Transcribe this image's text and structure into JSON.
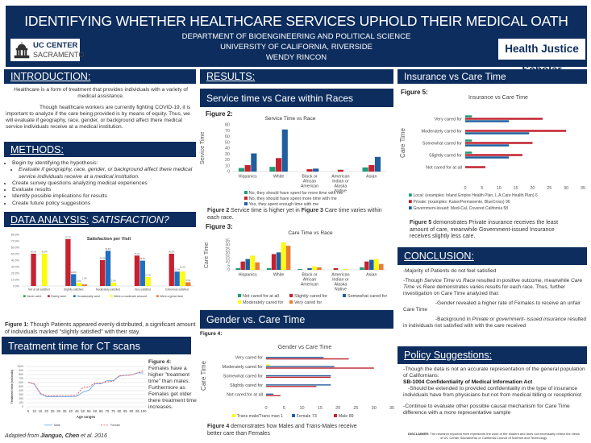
{
  "header": {
    "title": "IDENTIFYING WHETHER HEALTHCARE SERVICES UPHOLD THEIR MEDICAL OATH",
    "department": "DEPARTMENT OF BIOENGINEERING AND POLITICAL SCIENCE",
    "university": "UNIVERSITY OF CALIFORNIA, RIVERSIDE",
    "author": "WENDY RINCON",
    "logo_line1": "UC CENTER",
    "logo_line2": "SACRAMENTO",
    "badge": "Health Justice Scholar"
  },
  "intro": {
    "heading": "INTRODUCTION:",
    "p1": "Healthcare is a form of treatment that provides individuals with a variety of medical assistance.",
    "p2": "Though healthcare workers are currently fighting COVID-19, it is important to analyze if the care being provided is by means of equity. Thus, we will evaluate if geography, race, gender, or background affect there medical service individuals receive at a medical institution."
  },
  "methods": {
    "heading": "METHODS:",
    "items": [
      "Begin by identifying the hypothesis:",
      "Evaluate if geography, race, gender, or background affect there medical service individuals receive at a medical institution.",
      "Create survey questions analyzing medical experiences",
      "Evaluate results",
      "Identify possible implications for results",
      "Create future policy suggestions"
    ]
  },
  "data_analysis": {
    "heading": "DATA ANALYSIS:",
    "heading_italic": "SATISFACTION?",
    "caption_bold": "Figure 1:",
    "caption": " Though Patients appeared evenly distributed, a significant amount of individuals marked \"slightly satisfied\" with their stay."
  },
  "treatment": {
    "heading": "Treatment time for CT scans",
    "fig_label": "Figure 4:",
    "fig_text": "Females have a higher \"treatment time\" than males. Furthermore as Females get older there treatment time increases.",
    "source_prefix": "Adapted from ",
    "source_author": "Jianguo, Chen",
    "source_suffix": " et al. 2016"
  },
  "results": {
    "heading": "RESULTS:",
    "service_heading": "Service time vs Care within Races",
    "fig2_label": "Figure 2:",
    "caption_b1": "Figure 2",
    "caption_t1": " Service time is higher yet in ",
    "caption_b2": "Figure 3",
    "caption_t2": " Care time varies within each race.",
    "fig3_label": "Figure 3:",
    "gender_heading": "Gender vs. Care Time",
    "fig4_label": "Figure 4:",
    "fig4_caption_b": "Figure 4",
    "fig4_caption": " demonstrates how Males and Trans-Males receive better care than Females"
  },
  "insurance": {
    "heading": "Insurance vs Care Time",
    "fig5_label": "Figure 5:",
    "caption_b": "Figure 5",
    "caption": " demonstrates Private insurance receives the least amount of care, meanwhile Government-issued Insurance receives slightly less care."
  },
  "conclusion": {
    "heading": "CONCLUSION:",
    "p1": "-Majority of Patients do not feel satisfied",
    "p2a": "-Though ",
    "p2b": "Service Time vs Race",
    "p2c": " resulted in positive outcome, meanwhile ",
    "p2d": "Care Time vs Race",
    "p2e": " demonstrates varies results for each race. Thus, further investigation on Care Time analyzed that:",
    "p3": "-Gender revealed a higher rate of Females to receive an unfair Care Time",
    "p4a": "-Background in ",
    "p4b": "Private or government- issued insurance",
    "p4c": " resulted in individuals not satisfied with with the care received"
  },
  "policy": {
    "heading": "Policy Suggestions:",
    "p1": "-Though the data is not an accurate representation of the general population of Californians:",
    "act": "SB-1004 Confidentiality of Medical Information Act",
    "p2": "-Should be extended to provided confidentiality in the type of insurance individuals have from physicians but not from medical billing or receptionist",
    "p3": "-Continue to evaluate other possible causal mechanism for Care Time difference with a more representative sample",
    "disclaimer_b": "DISCLAIMER:",
    "disclaimer": " The research reported here represents the work of the student and does not necessarily reflect the views of UC Center Sacramento or California Council of Science and Technology."
  },
  "colors": {
    "navy": "#0d2d5e",
    "green": "#1e9e78",
    "red": "#c8202f",
    "blue": "#1f5fa0",
    "yellow": "#ffff00",
    "orange": "#ed7d31"
  },
  "chart_data": [
    {
      "type": "bar",
      "title": "Satisfaction per Visit",
      "categories": [
        "Not at all satisfied",
        "Slightly satisfied",
        "Moderately satisfied",
        "Very satisfied",
        "Extremely satisfied"
      ],
      "ylim": [
        0,
        80
      ],
      "yticks": [
        "0.0%",
        "10.0%",
        "20.0%",
        "30.0%",
        "40.0%",
        "50.0%",
        "60.0%",
        "70.0%",
        "80.0%"
      ],
      "grid": false,
      "legend": "bottom",
      "series": [
        {
          "name": "Never went",
          "color": "#3aa040",
          "values": [
            0,
            0,
            0,
            0,
            0
          ]
        },
        {
          "name": "Rarely went",
          "color": "#c8202f",
          "values": [
            50,
            72.7,
            40,
            47.1,
            50
          ]
        },
        {
          "name": "Occasionally went",
          "color": "#1f6fc0",
          "values": [
            0,
            18.2,
            54.5,
            39.2,
            22.2
          ]
        },
        {
          "name": "Went a moderate amount",
          "color": "#ffff00",
          "values": [
            50,
            4.5,
            5,
            13.7,
            22.2
          ]
        },
        {
          "name": "Went a great deal",
          "color": "#ed7d31",
          "values": [
            0,
            2.3,
            0,
            0,
            5.6
          ]
        }
      ]
    },
    {
      "type": "bar",
      "title": "Service Time vs Race",
      "ylabel": "Service Time",
      "categories": [
        "Hispanics",
        "White",
        "Black or African American",
        "American Indian or Alaska Native",
        "Asian"
      ],
      "ylim": [
        0,
        80
      ],
      "yticks": [
        "0",
        "10",
        "20",
        "30",
        "40",
        "50",
        "60",
        "70",
        "80"
      ],
      "grid": false,
      "legend": "bottom",
      "series": [
        {
          "name": "No, they should have spent far more time with me",
          "color": "#1e9e78",
          "values": [
            6,
            8,
            0,
            0,
            7
          ]
        },
        {
          "name": "No, they should have spent more time with me",
          "color": "#c8202f",
          "values": [
            11,
            23,
            4,
            3,
            11
          ]
        },
        {
          "name": "Yes, they spent enough time with me",
          "color": "#1f5fa0",
          "values": [
            31,
            72,
            5,
            0,
            25
          ]
        }
      ]
    },
    {
      "type": "bar",
      "title": "Care Time vs Race",
      "ylabel": "Care Time",
      "categories": [
        "Hispanics",
        "White",
        "Black or African American",
        "American Indian or Alaska Native",
        "Asian"
      ],
      "ylim": [
        0,
        35
      ],
      "yticks": [
        "0",
        "5",
        "10",
        "15",
        "20",
        "25",
        "30",
        "35"
      ],
      "grid": false,
      "legend": "bottom",
      "series": [
        {
          "name": "Not cared for at all",
          "color": "#1e9e78",
          "values": [
            2,
            2,
            1,
            0,
            3
          ]
        },
        {
          "name": "Slightly cared for",
          "color": "#c8202f",
          "values": [
            10,
            19,
            0,
            2,
            10
          ]
        },
        {
          "name": "Somewhat cared for",
          "color": "#1f5fa0",
          "values": [
            13,
            21,
            2,
            0,
            12
          ]
        },
        {
          "name": "Moderately cared for",
          "color": "#ffff00",
          "values": [
            17,
            33,
            4,
            1,
            13
          ]
        },
        {
          "name": "Very cared for",
          "color": "#ed7d31",
          "values": [
            9,
            29,
            3,
            0,
            7
          ]
        }
      ]
    },
    {
      "type": "bar",
      "orientation": "horizontal",
      "title": "Gender vs Care Time",
      "ylabel": "Care Time",
      "categories": [
        "Very cared for",
        "Moderately cared for",
        "Somewhat cared for",
        "Slightly cared for",
        "Not cared for at all"
      ],
      "xlim": [
        0,
        35
      ],
      "xticks": [
        "0",
        "5",
        "10",
        "15",
        "20",
        "25",
        "30",
        "35"
      ],
      "grid": false,
      "legend": "bottom",
      "series": [
        {
          "name": "Trans male/Trans man 1",
          "color": "#ffff00",
          "values": [
            0,
            1,
            0,
            0,
            0
          ]
        },
        {
          "name": "Female 73",
          "color": "#1f5fa0",
          "values": [
            16,
            19,
            18,
            18,
            2
          ]
        },
        {
          "name": "Male 89",
          "color": "#c8202f",
          "values": [
            23,
            30,
            18,
            14,
            4
          ]
        }
      ]
    },
    {
      "type": "bar",
      "orientation": "horizontal",
      "title": "Insurance vs Care Time",
      "ylabel": "Care Time",
      "categories": [
        "Very cared for",
        "Moderately cared for",
        "Somewhat cared for",
        "Slightly cared for",
        "Not cared for at all"
      ],
      "xlim": [
        0,
        35
      ],
      "xticks": [
        "0",
        "5",
        "10",
        "15",
        "20",
        "25",
        "30",
        "35"
      ],
      "grid": false,
      "legend": "bottom",
      "series": [
        {
          "name": "Local: (examples: Inland Empire Health Plan, L.A.Care Health Plan) 6",
          "color": "#1e9e78",
          "values": [
            2,
            0,
            2,
            2,
            0
          ]
        },
        {
          "name": "Private: (examples: KaiserPermanente, BlueCross) 96",
          "color": "#c8202f",
          "values": [
            23,
            30,
            20,
            17,
            6
          ]
        },
        {
          "name": "Government-issued: Medi-Cal, Covered California 58",
          "color": "#1f5fa0",
          "values": [
            13,
            19,
            13,
            13,
            0
          ]
        }
      ]
    },
    {
      "type": "line",
      "xlabel": "Age ranges",
      "ylabel": "Treatment time (seconds)",
      "x": [
        5,
        10,
        15,
        20,
        25,
        30,
        35,
        40,
        45,
        50,
        55,
        60,
        65,
        70,
        75,
        80,
        85,
        90,
        95,
        100
      ],
      "ylim": [
        0,
        1000
      ],
      "yticks": [
        "0",
        "100",
        "200",
        "300",
        "400",
        "500",
        "600",
        "700",
        "800",
        "900",
        "1000"
      ],
      "grid": true,
      "legend": "bottom",
      "series": [
        {
          "name": "Male",
          "color": "#7fb8ea",
          "dash": false,
          "values": [
            610,
            560,
            320,
            250,
            250,
            250,
            250,
            250,
            260,
            360,
            410,
            570,
            570,
            650,
            650,
            760,
            780,
            790,
            840,
            840
          ]
        },
        {
          "name": "Female",
          "color": "#f07070",
          "dash": true,
          "values": [
            610,
            570,
            340,
            270,
            270,
            280,
            280,
            280,
            290,
            480,
            490,
            590,
            590,
            620,
            630,
            770,
            780,
            790,
            840,
            890
          ]
        }
      ]
    }
  ]
}
